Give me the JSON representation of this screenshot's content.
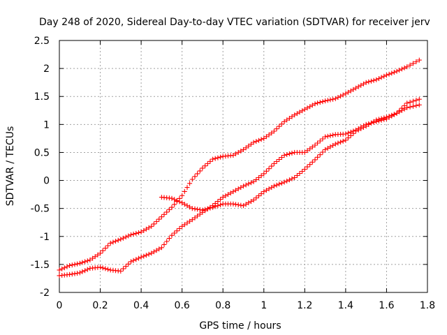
{
  "chart_data": {
    "type": "scatter",
    "title": "Day 248 of 2020, Sidereal Day-to-day VTEC variation (SDTVAR) for receiver jerv",
    "xlabel": "GPS time / hours",
    "ylabel": "SDTVAR / TECUs",
    "xlim": [
      0,
      1.8
    ],
    "ylim": [
      -2,
      2.5
    ],
    "xticks": [
      "0",
      "0.2",
      "0.4",
      "0.6",
      "0.8",
      "1",
      "1.2",
      "1.4",
      "1.6",
      "1.8"
    ],
    "yticks": [
      "2.5",
      "2",
      "1.5",
      "1",
      "0.5",
      "0",
      "-0.5",
      "-1",
      "-1.5",
      "-2"
    ],
    "grid": true,
    "legend": "none",
    "marker": "plus",
    "series_color": "#ff0000",
    "series": [
      {
        "points": [
          [
            0.0,
            -1.6
          ],
          [
            0.05,
            -1.52
          ],
          [
            0.1,
            -1.48
          ],
          [
            0.15,
            -1.42
          ],
          [
            0.2,
            -1.3
          ],
          [
            0.25,
            -1.12
          ],
          [
            0.3,
            -1.05
          ],
          [
            0.35,
            -0.97
          ],
          [
            0.4,
            -0.92
          ],
          [
            0.45,
            -0.82
          ],
          [
            0.5,
            -0.65
          ],
          [
            0.55,
            -0.48
          ],
          [
            0.6,
            -0.27
          ],
          [
            0.65,
            0.02
          ],
          [
            0.7,
            0.22
          ],
          [
            0.75,
            0.38
          ],
          [
            0.8,
            0.43
          ],
          [
            0.85,
            0.45
          ],
          [
            0.9,
            0.55
          ],
          [
            0.95,
            0.68
          ],
          [
            1.0,
            0.75
          ],
          [
            1.05,
            0.88
          ],
          [
            1.1,
            1.05
          ],
          [
            1.15,
            1.17
          ],
          [
            1.2,
            1.27
          ],
          [
            1.25,
            1.37
          ],
          [
            1.3,
            1.42
          ],
          [
            1.35,
            1.46
          ],
          [
            1.4,
            1.55
          ],
          [
            1.45,
            1.65
          ],
          [
            1.5,
            1.75
          ],
          [
            1.55,
            1.8
          ],
          [
            1.6,
            1.88
          ],
          [
            1.65,
            1.95
          ],
          [
            1.7,
            2.03
          ],
          [
            1.76,
            2.15
          ]
        ]
      },
      {
        "points": [
          [
            0.0,
            -1.7
          ],
          [
            0.05,
            -1.68
          ],
          [
            0.1,
            -1.65
          ],
          [
            0.15,
            -1.57
          ],
          [
            0.2,
            -1.55
          ],
          [
            0.25,
            -1.6
          ],
          [
            0.3,
            -1.62
          ],
          [
            0.35,
            -1.45
          ],
          [
            0.4,
            -1.37
          ],
          [
            0.45,
            -1.3
          ],
          [
            0.5,
            -1.2
          ],
          [
            0.55,
            -0.98
          ],
          [
            0.6,
            -0.82
          ],
          [
            0.65,
            -0.7
          ],
          [
            0.7,
            -0.57
          ],
          [
            0.75,
            -0.45
          ],
          [
            0.8,
            -0.3
          ],
          [
            0.85,
            -0.2
          ],
          [
            0.9,
            -0.1
          ],
          [
            0.95,
            -0.02
          ],
          [
            1.0,
            0.12
          ],
          [
            1.05,
            0.3
          ],
          [
            1.1,
            0.45
          ],
          [
            1.15,
            0.5
          ],
          [
            1.2,
            0.5
          ],
          [
            1.25,
            0.63
          ],
          [
            1.3,
            0.78
          ],
          [
            1.35,
            0.82
          ],
          [
            1.4,
            0.83
          ],
          [
            1.45,
            0.9
          ],
          [
            1.5,
            1.0
          ],
          [
            1.55,
            1.05
          ],
          [
            1.6,
            1.1
          ],
          [
            1.65,
            1.2
          ],
          [
            1.7,
            1.3
          ],
          [
            1.76,
            1.35
          ]
        ]
      },
      {
        "points": [
          [
            0.5,
            -0.3
          ],
          [
            0.55,
            -0.32
          ],
          [
            0.6,
            -0.4
          ],
          [
            0.65,
            -0.5
          ],
          [
            0.7,
            -0.53
          ],
          [
            0.75,
            -0.48
          ],
          [
            0.8,
            -0.42
          ],
          [
            0.85,
            -0.42
          ],
          [
            0.9,
            -0.45
          ],
          [
            0.95,
            -0.35
          ],
          [
            1.0,
            -0.2
          ],
          [
            1.05,
            -0.1
          ],
          [
            1.1,
            -0.03
          ],
          [
            1.15,
            0.05
          ],
          [
            1.2,
            0.2
          ],
          [
            1.25,
            0.37
          ],
          [
            1.3,
            0.55
          ],
          [
            1.35,
            0.65
          ],
          [
            1.4,
            0.72
          ],
          [
            1.45,
            0.88
          ],
          [
            1.5,
            0.97
          ],
          [
            1.55,
            1.08
          ],
          [
            1.6,
            1.13
          ],
          [
            1.65,
            1.2
          ],
          [
            1.7,
            1.38
          ],
          [
            1.76,
            1.45
          ]
        ]
      }
    ]
  }
}
